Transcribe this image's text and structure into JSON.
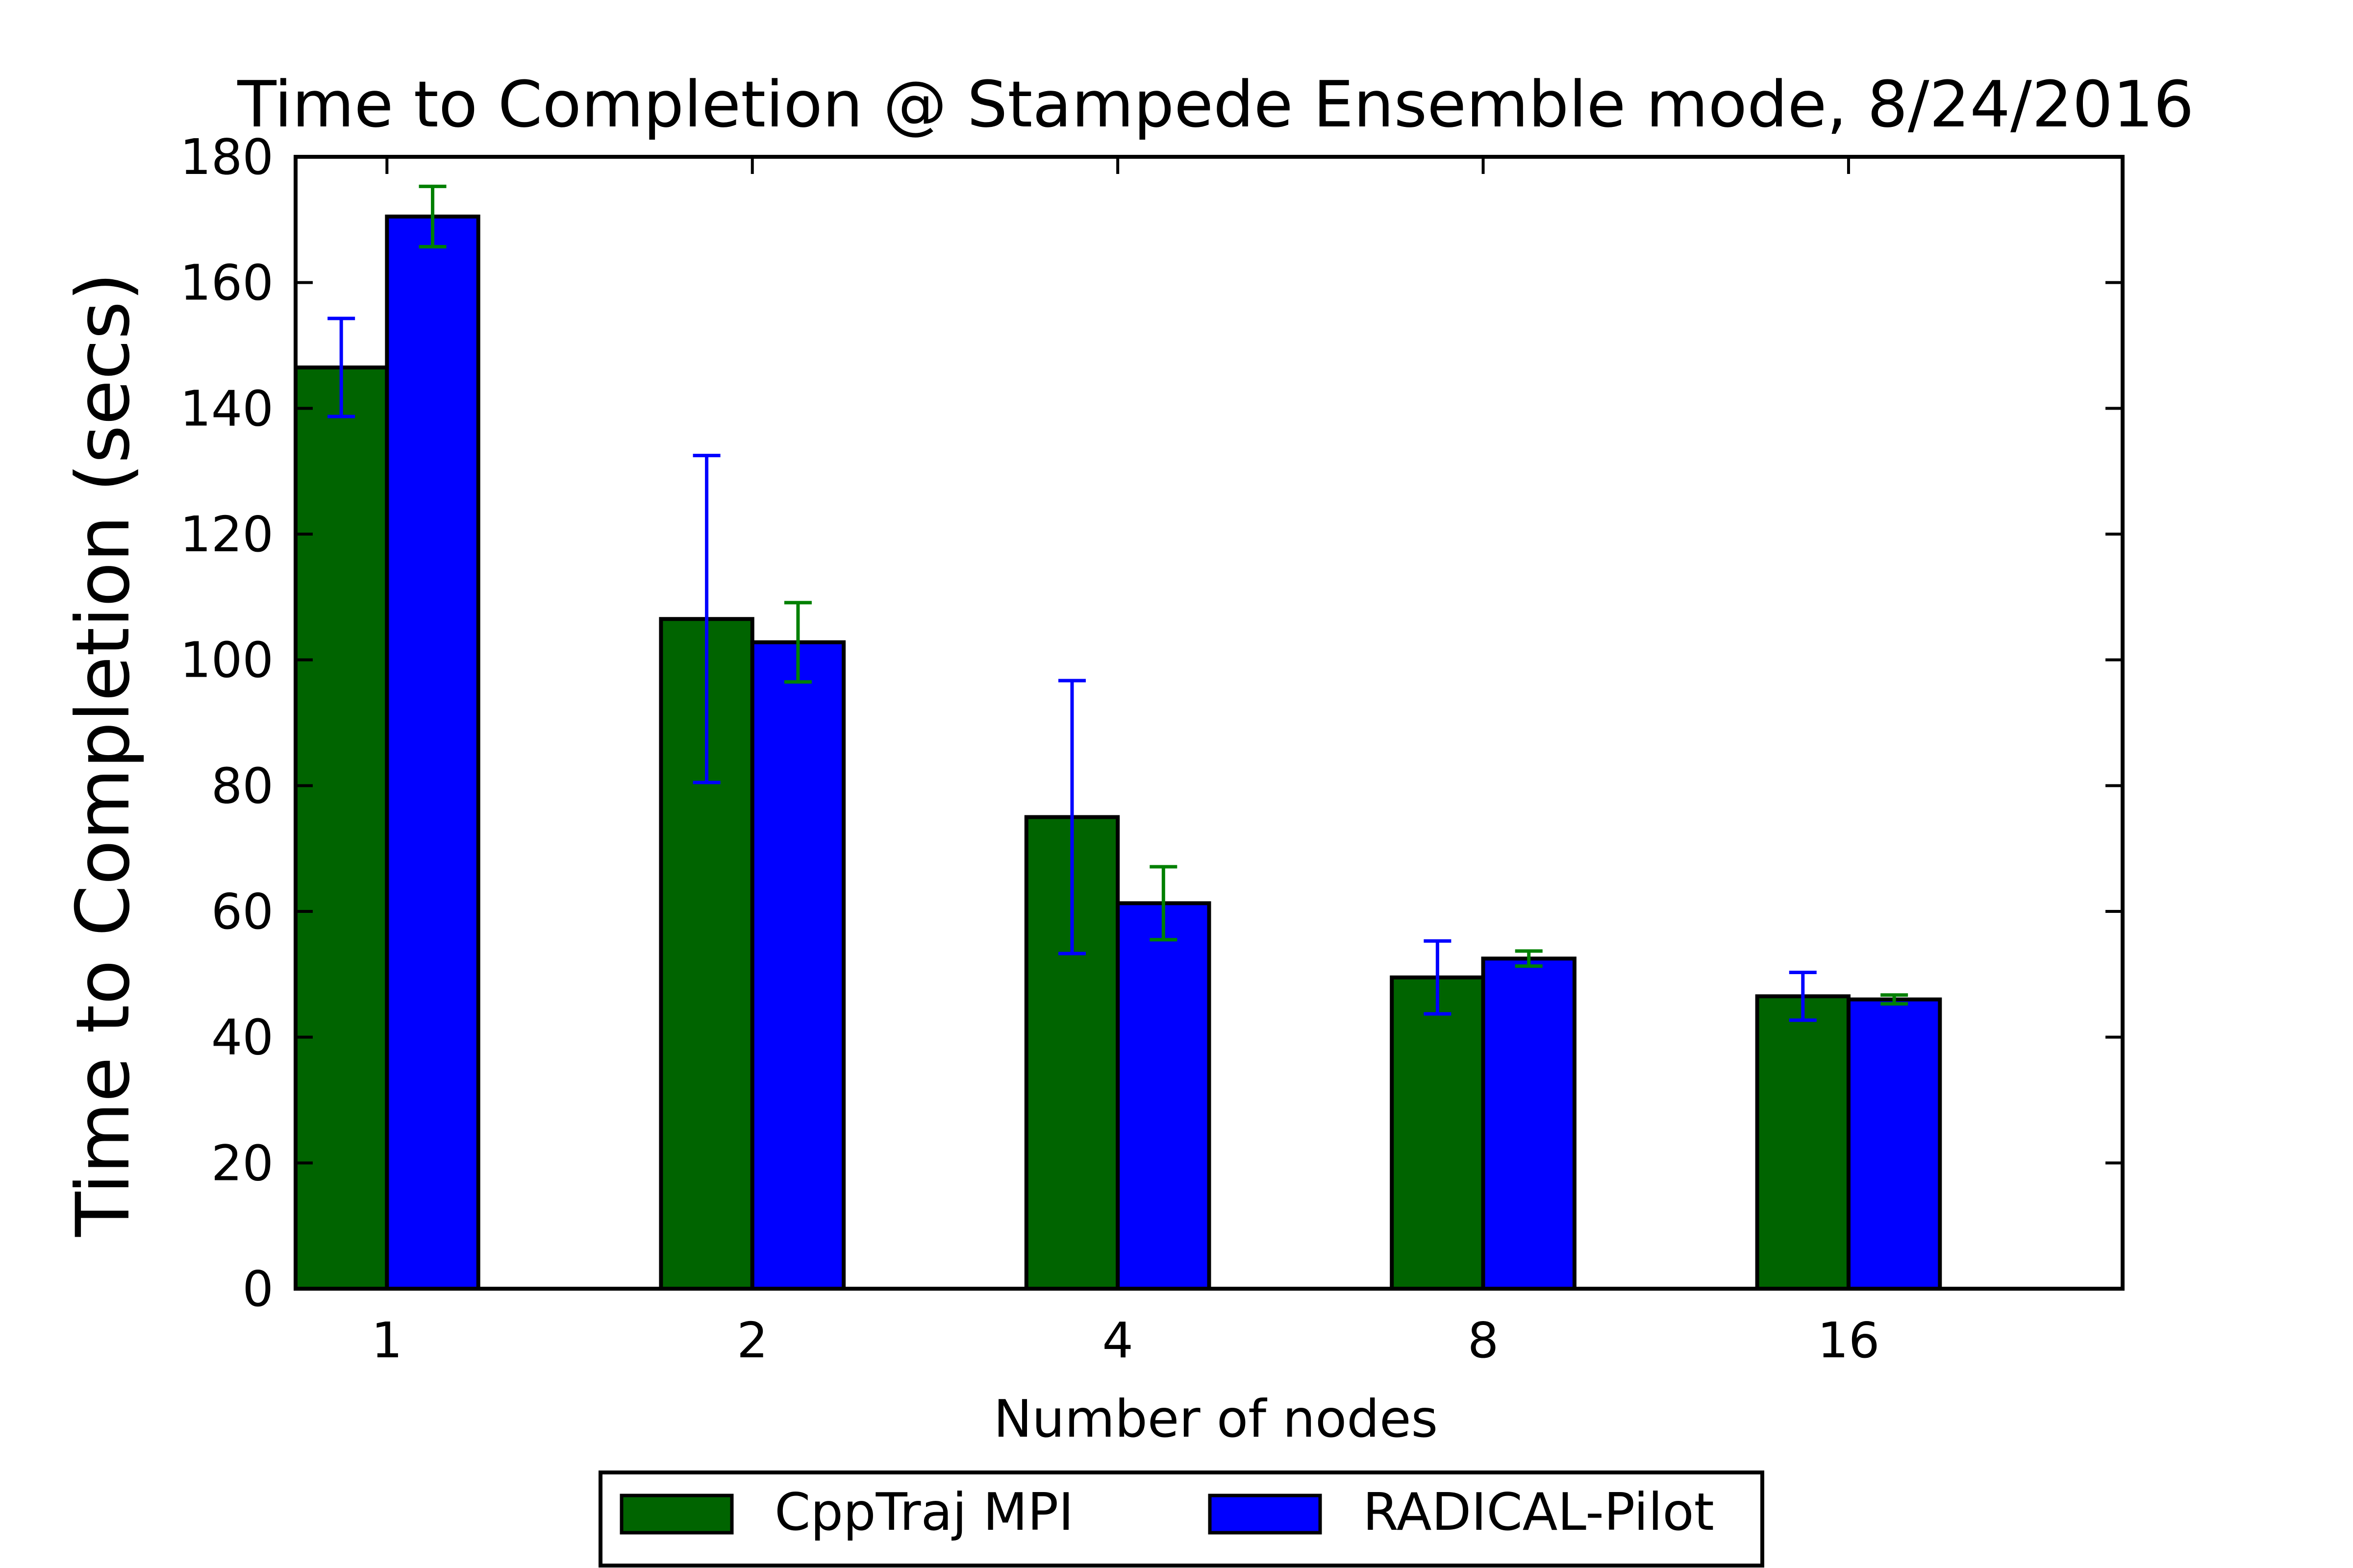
{
  "chart_data": {
    "type": "bar",
    "title": "Time to Completion @ Stampede Ensemble mode, 8/24/2016",
    "xlabel": "Number of nodes",
    "ylabel": "Time to Completion (secs)",
    "categories": [
      "1",
      "2",
      "4",
      "8",
      "16"
    ],
    "ylim": [
      0,
      180
    ],
    "yticks": [
      0,
      20,
      40,
      60,
      80,
      100,
      120,
      140,
      160,
      180
    ],
    "grid": false,
    "legend_position": "bottom-center",
    "series": [
      {
        "name": "CppTraj MPI",
        "color": "#006400",
        "error_color": "#0000ff",
        "values": [
          146.5,
          106.5,
          75.0,
          49.5,
          46.5
        ],
        "errors": [
          7.8,
          26.0,
          21.7,
          5.8,
          3.8
        ]
      },
      {
        "name": "RADICAL-Pilot",
        "color": "#0000ff",
        "error_color": "#008000",
        "values": [
          170.5,
          102.8,
          61.3,
          52.5,
          46.0
        ],
        "errors": [
          4.8,
          6.3,
          5.8,
          1.2,
          0.7
        ]
      }
    ]
  }
}
